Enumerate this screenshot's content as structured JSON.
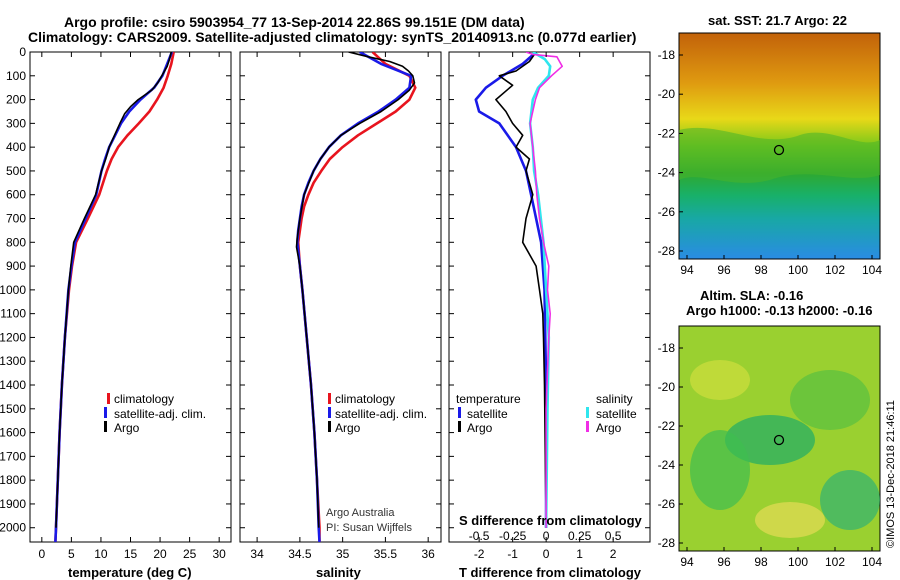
{
  "header": {
    "line1": "Argo profile: csiro 5903954_77 13-Sep-2014 22.86S 99.151E (DM data)",
    "line2": "Climatology: CARS2009. Satellite-adjusted climatology: synTS_20140913.nc (0.077d earlier)"
  },
  "colors": {
    "climatology": "#e8141e",
    "satellite": "#1a1ae8",
    "argo": "#000000",
    "satellite_s": "#2fe6ee",
    "argo_s": "#f02ee6"
  },
  "y_ticks": [
    "0",
    "100",
    "200",
    "300",
    "400",
    "500",
    "600",
    "700",
    "800",
    "900",
    "1000",
    "1100",
    "1200",
    "1300",
    "1400",
    "1500",
    "1600",
    "1700",
    "1800",
    "1900",
    "2000"
  ],
  "chart_data": [
    {
      "type": "line",
      "title": "",
      "xlabel": "temperature (deg C)",
      "ylabel": "",
      "xlim": [
        -2,
        32
      ],
      "ylim": [
        2060,
        0
      ],
      "xticks": [
        0,
        5,
        10,
        15,
        20,
        25,
        30
      ],
      "xtick_labels": [
        "0",
        "5",
        "10",
        "15",
        "20",
        "25",
        "30"
      ],
      "legend": {
        "position": "bottom-right",
        "entries": [
          "climatology",
          "satellite-adj. clim.",
          "Argo"
        ]
      },
      "series": [
        {
          "name": "climatology",
          "color": "#e8141e",
          "depth": [
            0,
            50,
            100,
            150,
            200,
            250,
            300,
            350,
            400,
            450,
            500,
            600,
            700,
            800,
            900,
            1000,
            1200,
            1400,
            1600,
            1800,
            2000,
            2060
          ],
          "values": [
            22.3,
            21.9,
            21.3,
            20.6,
            19.5,
            18.2,
            16.4,
            14.5,
            12.9,
            11.8,
            11.0,
            9.7,
            7.8,
            5.8,
            5.1,
            4.6,
            3.9,
            3.4,
            3.0,
            2.7,
            2.4,
            2.3
          ]
        },
        {
          "name": "satellite-adj. clim.",
          "color": "#1a1ae8",
          "depth": [
            0,
            50,
            100,
            150,
            200,
            250,
            300,
            350,
            400,
            450,
            500,
            600,
            700,
            800,
            900,
            1000,
            1200,
            1400,
            1600,
            1800,
            2000,
            2060
          ],
          "values": [
            22.0,
            21.2,
            20.4,
            19.0,
            16.7,
            14.8,
            13.4,
            12.4,
            11.4,
            10.7,
            10.1,
            9.2,
            7.4,
            5.6,
            5.0,
            4.5,
            3.9,
            3.4,
            3.0,
            2.7,
            2.4,
            2.3
          ]
        },
        {
          "name": "Argo",
          "color": "#000000",
          "depth": [
            0,
            30,
            60,
            100,
            130,
            160,
            200,
            230,
            260,
            300,
            350,
            400,
            450,
            500,
            600,
            700,
            800,
            900,
            1000,
            1200,
            1400,
            1600,
            1800,
            2000
          ],
          "values": [
            21.9,
            21.6,
            21.2,
            20.3,
            19.6,
            18.6,
            16.3,
            15.0,
            14.0,
            13.2,
            12.3,
            11.4,
            10.8,
            10.1,
            9.1,
            7.2,
            5.4,
            4.9,
            4.5,
            3.9,
            3.4,
            3.0,
            2.7,
            2.4
          ]
        }
      ],
      "annotations": []
    },
    {
      "type": "line",
      "title": "",
      "xlabel": "salinity",
      "ylabel": "",
      "xlim": [
        33.8,
        36.15
      ],
      "ylim": [
        2060,
        0
      ],
      "xticks": [
        34,
        34.5,
        35,
        35.5,
        36
      ],
      "xtick_labels": [
        "34",
        "34.5",
        "35",
        "35.5",
        "36"
      ],
      "legend": {
        "position": "bottom-right",
        "entries": [
          "climatology",
          "satellite-adj. clim.",
          "Argo"
        ]
      },
      "series": [
        {
          "name": "climatology",
          "color": "#e8141e",
          "depth": [
            0,
            50,
            100,
            150,
            200,
            250,
            300,
            350,
            400,
            450,
            500,
            550,
            600,
            650,
            700,
            750,
            800,
            900,
            1000,
            1200,
            1400,
            1600,
            1800,
            2000,
            2060
          ],
          "values": [
            35.35,
            35.5,
            35.78,
            35.85,
            35.78,
            35.62,
            35.4,
            35.18,
            35.0,
            34.85,
            34.75,
            34.66,
            34.6,
            34.55,
            34.52,
            34.5,
            34.48,
            34.5,
            34.53,
            34.58,
            34.63,
            34.67,
            34.7,
            34.73,
            34.73
          ]
        },
        {
          "name": "satellite-adj. clim.",
          "color": "#1a1ae8",
          "depth": [
            0,
            50,
            100,
            150,
            200,
            250,
            300,
            350,
            400,
            450,
            500,
            550,
            600,
            650,
            700,
            750,
            800,
            900,
            1000,
            1200,
            1400,
            1600,
            1800,
            2000,
            2060
          ],
          "values": [
            35.2,
            35.45,
            35.8,
            35.78,
            35.62,
            35.42,
            35.18,
            34.98,
            34.84,
            34.74,
            34.66,
            34.6,
            34.55,
            34.52,
            34.5,
            34.48,
            34.47,
            34.5,
            34.53,
            34.58,
            34.63,
            34.67,
            34.7,
            34.72,
            34.73
          ]
        },
        {
          "name": "Argo",
          "color": "#000000",
          "depth": [
            0,
            20,
            40,
            60,
            80,
            100,
            130,
            160,
            200,
            250,
            300,
            350,
            400,
            450,
            500,
            600,
            700,
            780,
            820,
            900,
            1000,
            1200,
            1400,
            1600,
            1800,
            2000
          ],
          "values": [
            35.07,
            35.3,
            35.55,
            35.7,
            35.77,
            35.82,
            35.84,
            35.78,
            35.65,
            35.45,
            35.2,
            34.98,
            34.84,
            34.74,
            34.66,
            34.55,
            34.5,
            34.47,
            34.46,
            34.5,
            34.53,
            34.58,
            34.63,
            34.67,
            34.7,
            34.72
          ]
        }
      ],
      "annotations": [
        "Argo Australia",
        "PI: Susan Wijffels"
      ]
    },
    {
      "type": "line",
      "title": "S difference from climatology",
      "xlabel": "T difference from climatology",
      "ylabel": "",
      "xlim": [
        -2.9,
        3.1
      ],
      "ylim": [
        2060,
        0
      ],
      "xticks": [
        -2,
        -1,
        0,
        1,
        2
      ],
      "xtick_labels": [
        "-2",
        "-1",
        "0",
        "1",
        "2"
      ],
      "secondary_xticks": [
        -0.5,
        -0.25,
        0,
        0.25,
        0.5
      ],
      "secondary_xtick_labels": [
        "-0.5",
        "-0.25",
        "0",
        "0.25",
        "0.5"
      ],
      "legend": {
        "position": "bottom",
        "entries": [
          "temperature",
          "satellite",
          "Argo",
          "salinity",
          "satellite",
          "Argo"
        ]
      },
      "series": [
        {
          "name": "temperature satellite",
          "color": "#1a1ae8",
          "depth": [
            0,
            50,
            100,
            150,
            200,
            250,
            300,
            400,
            500,
            600,
            700,
            800,
            1000,
            1400,
            2000
          ],
          "values": [
            -0.3,
            -0.7,
            -1.3,
            -1.8,
            -2.1,
            -2.0,
            -1.4,
            -0.9,
            -0.6,
            -0.45,
            -0.3,
            -0.15,
            -0.05,
            0.0,
            0.0
          ]
        },
        {
          "name": "temperature Argo",
          "color": "#000000",
          "depth": [
            0,
            40,
            80,
            100,
            140,
            200,
            250,
            300,
            350,
            400,
            450,
            500,
            600,
            700,
            800,
            900,
            1000,
            1100,
            1200,
            1400,
            2000
          ],
          "values": [
            -0.3,
            -0.5,
            -0.9,
            -1.4,
            -1.0,
            -1.5,
            -1.2,
            -1.0,
            -0.7,
            -0.9,
            -0.5,
            -0.6,
            -0.4,
            -0.6,
            -0.7,
            -0.3,
            -0.2,
            -0.1,
            -0.08,
            -0.05,
            0.0
          ]
        },
        {
          "name": "salinity satellite",
          "color": "#2fe6ee",
          "depth": [
            0,
            30,
            60,
            100,
            150,
            200,
            300,
            400,
            500,
            600,
            800,
            1000,
            1200,
            1500,
            2000
          ],
          "values": [
            -0.1,
            -0.01,
            0.03,
            0.02,
            -0.06,
            -0.1,
            -0.12,
            -0.1,
            -0.09,
            -0.06,
            -0.02,
            0.0,
            0.02,
            0.01,
            0.0
          ]
        },
        {
          "name": "salinity Argo",
          "color": "#f02ee6",
          "depth": [
            0,
            10,
            20,
            40,
            60,
            100,
            150,
            200,
            300,
            400,
            500,
            600,
            700,
            800,
            900,
            1000,
            1100,
            1200,
            1500,
            2000
          ],
          "values": [
            -0.15,
            -0.1,
            0.08,
            0.1,
            0.12,
            0.04,
            -0.05,
            -0.08,
            -0.12,
            -0.1,
            -0.08,
            -0.07,
            -0.05,
            -0.02,
            0.02,
            0.01,
            0.03,
            0.02,
            0.0,
            0.0
          ]
        }
      ],
      "annotations": []
    }
  ],
  "legends": {
    "temperature_panel": [
      "climatology",
      "satellite-adj. clim.",
      "Argo"
    ],
    "salinity_panel": [
      "climatology",
      "satellite-adj. clim.",
      "Argo"
    ],
    "diff_panel_left_title": "temperature",
    "diff_panel_left": [
      "satellite",
      "Argo"
    ],
    "diff_panel_right_title": "salinity",
    "diff_panel_right": [
      "satellite",
      "Argo"
    ]
  },
  "credits": {
    "line1": "Argo Australia",
    "line2": "PI: Susan Wijffels"
  },
  "maps": {
    "sst": {
      "title": "sat. SST: 21.7 Argo: 22",
      "y_ticks": [
        "-18",
        "-20",
        "-22",
        "-24",
        "-26",
        "-28"
      ],
      "x_ticks": [
        "94",
        "96",
        "98",
        "100",
        "102",
        "104"
      ]
    },
    "sla": {
      "title_line1": "Altim. SLA: -0.16",
      "title_line2": "Argo h1000: -0.13 h2000: -0.16",
      "y_ticks": [
        "-18",
        "-20",
        "-22",
        "-24",
        "-26",
        "-28"
      ],
      "x_ticks": [
        "94",
        "96",
        "98",
        "100",
        "102",
        "104"
      ]
    }
  },
  "side_label": "©IMOS 13-Dec-2018 21:46:11"
}
